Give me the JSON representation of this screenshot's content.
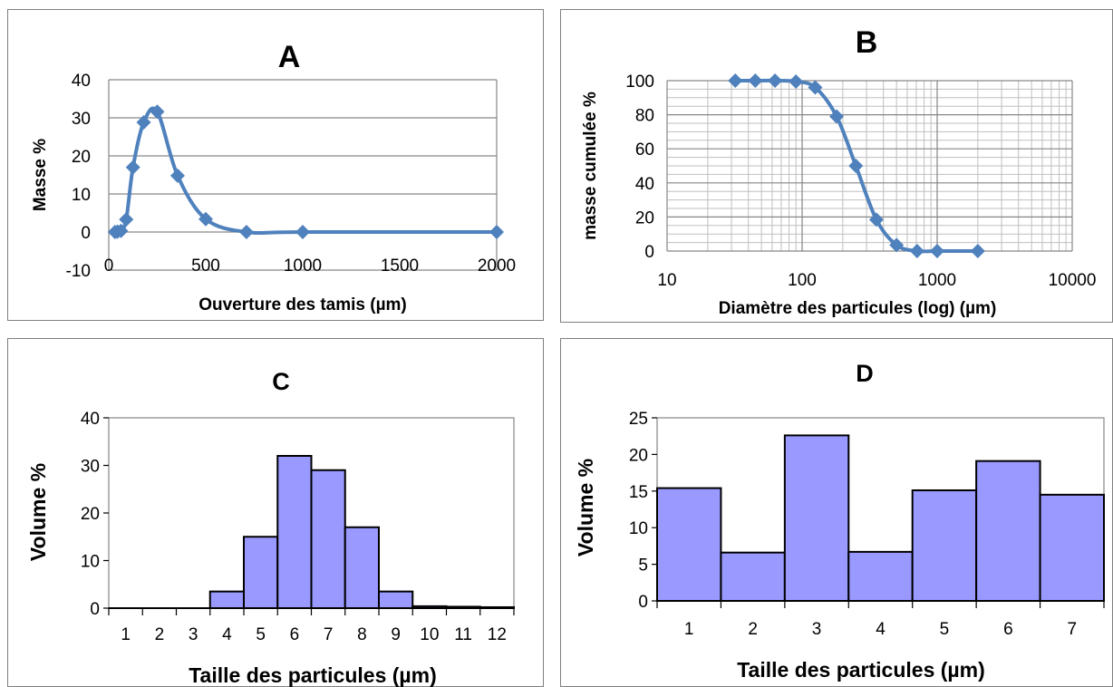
{
  "colors": {
    "line": "#4f81bd",
    "marker": "#4f81bd",
    "bar_fill": "#9999ff",
    "bar_stroke": "#000000",
    "grid": "#868686",
    "minor_grid": "#bfbfbf",
    "frame": "#7f7f7f"
  },
  "chart_data": [
    {
      "type": "line",
      "title": "A",
      "xlabel": "Ouverture des tamis (µm)",
      "ylabel": "Masse %",
      "xlim": [
        0,
        2000
      ],
      "ylim": [
        -10,
        40
      ],
      "xticks": [
        0,
        500,
        1000,
        1500,
        2000
      ],
      "yticks": [
        -10,
        0,
        10,
        20,
        30,
        40
      ],
      "xtick_labels": [
        "0",
        "500",
        "1000",
        "1500",
        "2000"
      ],
      "ytick_labels": [
        "-10",
        "0",
        "10",
        "20",
        "30",
        "40"
      ],
      "grid": "horizontal",
      "series": [
        {
          "x": [
            32,
            45,
            63,
            90,
            125,
            180,
            250,
            355,
            500,
            710,
            1000,
            2000
          ],
          "y": [
            0,
            0.1,
            0.3,
            3.3,
            17,
            28.8,
            31.6,
            14.8,
            3.4,
            0,
            0,
            0
          ]
        }
      ]
    },
    {
      "type": "line",
      "title": "B",
      "xlabel": "Diamètre des particules (log) (µm)",
      "ylabel": "masse cumulée %",
      "xscale": "log",
      "xlim": [
        10,
        10000
      ],
      "ylim": [
        0,
        100
      ],
      "xticks": [
        10,
        100,
        1000,
        10000
      ],
      "yticks": [
        0,
        20,
        40,
        60,
        80,
        100
      ],
      "xtick_labels": [
        "10",
        "100",
        "1000",
        "10000"
      ],
      "ytick_labels": [
        "0",
        "20",
        "40",
        "60",
        "80",
        "100"
      ],
      "grid": "both",
      "series": [
        {
          "x": [
            32,
            45,
            63,
            90,
            125,
            180,
            250,
            355,
            500,
            710,
            1000,
            2000
          ],
          "y": [
            100,
            100,
            100,
            99.5,
            96,
            79,
            50,
            18.4,
            3.5,
            0,
            0,
            0
          ]
        }
      ]
    },
    {
      "type": "bar",
      "title": "C",
      "xlabel": "Taille des particules (µm)",
      "ylabel": "Volume %",
      "categories": [
        "1",
        "2",
        "3",
        "4",
        "5",
        "6",
        "7",
        "8",
        "9",
        "10",
        "11",
        "12"
      ],
      "values": [
        0,
        0,
        0,
        3.5,
        15,
        32,
        29,
        17,
        3.5,
        0.4,
        0.3,
        0.2
      ],
      "ylim": [
        0,
        40
      ],
      "yticks": [
        0,
        10,
        20,
        30,
        40
      ],
      "ytick_labels": [
        "0",
        "10",
        "20",
        "30",
        "40"
      ],
      "grid": "none"
    },
    {
      "type": "bar",
      "title": "D",
      "xlabel": "Taille des particules (µm)",
      "ylabel": "Volume %",
      "categories": [
        "1",
        "2",
        "3",
        "4",
        "5",
        "6",
        "7"
      ],
      "values": [
        15.4,
        6.6,
        22.6,
        6.7,
        15.1,
        19.1,
        14.5
      ],
      "ylim": [
        0,
        25
      ],
      "yticks": [
        0,
        5,
        10,
        15,
        20,
        25
      ],
      "ytick_labels": [
        "0",
        "5",
        "10",
        "15",
        "20",
        "25"
      ],
      "grid": "none"
    }
  ]
}
